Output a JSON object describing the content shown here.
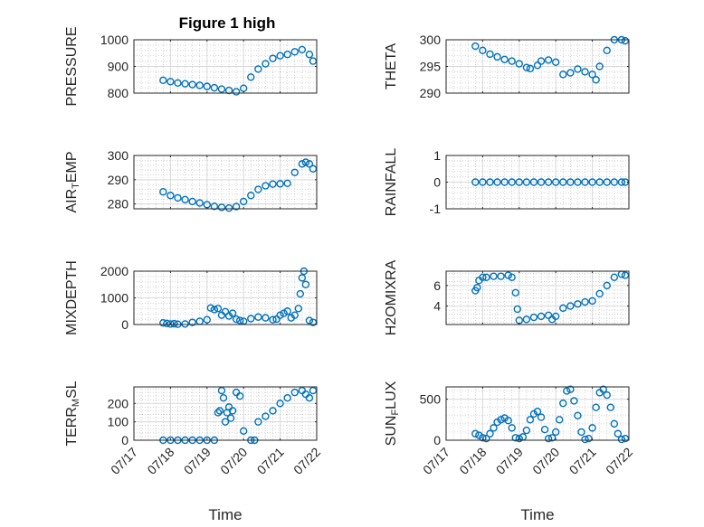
{
  "figure_title": "Figure 1 high",
  "colors": {
    "marker": "#0072BD",
    "axis": "#262626",
    "grid": "#d9d9d9",
    "minor_grid": "#bfbfbf"
  },
  "chart_data": [
    {
      "type": "scatter",
      "ylabel_parts": [
        [
          "PRESSURE",
          ""
        ]
      ],
      "xlabel": "",
      "x_tick_labels": [
        "07/17",
        "07/18",
        "07/19",
        "07/20",
        "07/21",
        "07/22"
      ],
      "x_tick_values": [
        17,
        18,
        19,
        20,
        21,
        22
      ],
      "xlim": [
        17,
        22
      ],
      "y_tick_labels": [
        "800",
        "900",
        "1000"
      ],
      "y_tick_values": [
        800,
        900,
        1000
      ],
      "ylim": [
        800,
        1000
      ],
      "grid": true,
      "x": [
        17.8,
        18.0,
        18.2,
        18.4,
        18.6,
        18.8,
        19.0,
        19.2,
        19.4,
        19.6,
        19.8,
        20.0,
        20.2,
        20.4,
        20.6,
        20.8,
        21.0,
        21.2,
        21.4,
        21.6,
        21.8,
        21.9
      ],
      "y": [
        848,
        843,
        838,
        835,
        832,
        829,
        825,
        820,
        815,
        810,
        805,
        818,
        860,
        890,
        910,
        930,
        940,
        945,
        955,
        963,
        945,
        920
      ]
    },
    {
      "type": "scatter",
      "ylabel_parts": [
        [
          "THETA",
          ""
        ]
      ],
      "xlabel": "",
      "x_tick_labels": [
        "07/17",
        "07/18",
        "07/19",
        "07/20",
        "07/21",
        "07/22"
      ],
      "x_tick_values": [
        17,
        18,
        19,
        20,
        21,
        22
      ],
      "xlim": [
        17,
        22
      ],
      "y_tick_labels": [
        "290",
        "295",
        "300"
      ],
      "y_tick_values": [
        290,
        295,
        300
      ],
      "ylim": [
        290,
        300
      ],
      "grid": true,
      "x": [
        17.8,
        18.0,
        18.2,
        18.4,
        18.6,
        18.8,
        19.0,
        19.2,
        19.3,
        19.5,
        19.6,
        19.8,
        20.0,
        20.2,
        20.4,
        20.6,
        20.8,
        21.0,
        21.1,
        21.2,
        21.4,
        21.6,
        21.8,
        21.9
      ],
      "y": [
        298.8,
        298,
        297.3,
        296.8,
        296.3,
        296,
        295.5,
        294.8,
        294.6,
        295.2,
        296,
        296.2,
        295.8,
        293.5,
        293.8,
        294.5,
        294,
        293.5,
        292.5,
        295,
        298,
        300,
        300,
        299.8
      ]
    },
    {
      "type": "scatter",
      "ylabel_parts": [
        [
          "AIR",
          ""
        ],
        [
          "T",
          "sub"
        ],
        [
          "EMP",
          ""
        ]
      ],
      "xlabel": "",
      "x_tick_labels": [
        "07/17",
        "07/18",
        "07/19",
        "07/20",
        "07/21",
        "07/22"
      ],
      "x_tick_values": [
        17,
        18,
        19,
        20,
        21,
        22
      ],
      "xlim": [
        17,
        22
      ],
      "y_tick_labels": [
        "280",
        "290",
        "300"
      ],
      "y_tick_values": [
        280,
        290,
        300
      ],
      "ylim": [
        278,
        300
      ],
      "grid": true,
      "x": [
        17.8,
        18.0,
        18.2,
        18.4,
        18.6,
        18.8,
        19.0,
        19.2,
        19.4,
        19.6,
        19.8,
        20.0,
        20.2,
        20.4,
        20.6,
        20.8,
        21.0,
        21.2,
        21.4,
        21.6,
        21.7,
        21.8,
        21.9
      ],
      "y": [
        285,
        283.5,
        282.5,
        281.8,
        281,
        280.4,
        279.7,
        279,
        278.6,
        278.3,
        278.9,
        281,
        283.5,
        286,
        287.5,
        288.2,
        288.3,
        288.5,
        293,
        296.5,
        297.2,
        296.5,
        294.5
      ]
    },
    {
      "type": "scatter",
      "ylabel_parts": [
        [
          "RAINFALL",
          ""
        ]
      ],
      "xlabel": "",
      "x_tick_labels": [
        "07/17",
        "07/18",
        "07/19",
        "07/20",
        "07/21",
        "07/22"
      ],
      "x_tick_values": [
        17,
        18,
        19,
        20,
        21,
        22
      ],
      "xlim": [
        17,
        22
      ],
      "y_tick_labels": [
        "-1",
        "0",
        "1"
      ],
      "y_tick_values": [
        -1,
        0,
        1
      ],
      "ylim": [
        -1,
        1
      ],
      "grid": true,
      "x": [
        17.8,
        18.0,
        18.2,
        18.4,
        18.6,
        18.8,
        19.0,
        19.2,
        19.4,
        19.6,
        19.8,
        20.0,
        20.2,
        20.4,
        20.6,
        20.8,
        21.0,
        21.2,
        21.4,
        21.6,
        21.8,
        21.9
      ],
      "y": [
        0,
        0,
        0,
        0,
        0,
        0,
        0,
        0,
        0,
        0,
        0,
        0,
        0,
        0,
        0,
        0,
        0,
        0,
        0,
        0,
        0,
        0
      ]
    },
    {
      "type": "scatter",
      "ylabel_parts": [
        [
          "MIXDEPTH",
          ""
        ]
      ],
      "xlabel": "",
      "x_tick_labels": [
        "07/17",
        "07/18",
        "07/19",
        "07/20",
        "07/21",
        "07/22"
      ],
      "x_tick_values": [
        17,
        18,
        19,
        20,
        21,
        22
      ],
      "xlim": [
        17,
        22
      ],
      "y_tick_labels": [
        "0",
        "1000",
        "2000"
      ],
      "y_tick_values": [
        0,
        1000,
        2000
      ],
      "ylim": [
        0,
        2000
      ],
      "grid": true,
      "x": [
        17.8,
        17.9,
        18.0,
        18.1,
        18.2,
        18.4,
        18.6,
        18.8,
        19.0,
        19.1,
        19.2,
        19.3,
        19.4,
        19.5,
        19.6,
        19.7,
        19.8,
        19.9,
        20.0,
        20.2,
        20.4,
        20.6,
        20.8,
        20.9,
        21.0,
        21.1,
        21.2,
        21.3,
        21.4,
        21.5,
        21.55,
        21.6,
        21.65,
        21.7,
        21.8,
        21.9
      ],
      "y": [
        60,
        40,
        20,
        30,
        10,
        20,
        80,
        120,
        180,
        620,
        560,
        600,
        350,
        480,
        320,
        420,
        200,
        150,
        120,
        220,
        280,
        250,
        180,
        200,
        350,
        420,
        500,
        250,
        350,
        600,
        1150,
        1750,
        2000,
        1500,
        150,
        80
      ]
    },
    {
      "type": "scatter",
      "ylabel_parts": [
        [
          "H2OMIXRA",
          ""
        ]
      ],
      "xlabel": "",
      "x_tick_labels": [
        "07/17",
        "07/18",
        "07/19",
        "07/20",
        "07/21",
        "07/22"
      ],
      "x_tick_values": [
        17,
        18,
        19,
        20,
        21,
        22
      ],
      "xlim": [
        17,
        22
      ],
      "y_tick_labels": [
        "4",
        "6"
      ],
      "y_tick_values": [
        4,
        6
      ],
      "ylim": [
        2.2,
        7.4
      ],
      "grid": true,
      "x": [
        17.8,
        17.85,
        17.9,
        18.0,
        18.1,
        18.3,
        18.5,
        18.7,
        18.8,
        18.9,
        18.95,
        19.0,
        19.2,
        19.4,
        19.6,
        19.8,
        19.9,
        20.0,
        20.2,
        20.4,
        20.6,
        20.8,
        21.0,
        21.2,
        21.4,
        21.6,
        21.8,
        21.9
      ],
      "y": [
        5.5,
        5.8,
        6.5,
        6.8,
        6.8,
        6.9,
        6.9,
        7.0,
        6.8,
        5.3,
        3.7,
        2.6,
        2.7,
        2.9,
        3.0,
        3.1,
        2.7,
        3.0,
        3.8,
        4.0,
        4.2,
        4.4,
        4.5,
        5.2,
        6.0,
        6.8,
        7.1,
        7.0
      ]
    },
    {
      "type": "scatter",
      "ylabel_parts": [
        [
          "TERR",
          ""
        ],
        [
          "M",
          "sub"
        ],
        [
          "SL",
          ""
        ]
      ],
      "xlabel": "Time",
      "x_tick_labels": [
        "07/17",
        "07/18",
        "07/19",
        "07/20",
        "07/21",
        "07/22"
      ],
      "x_tick_values": [
        17,
        18,
        19,
        20,
        21,
        22
      ],
      "xlim": [
        17,
        22
      ],
      "y_tick_labels": [
        "0",
        "100",
        "200"
      ],
      "y_tick_values": [
        0,
        100,
        200
      ],
      "ylim": [
        0,
        290
      ],
      "grid": true,
      "x": [
        17.8,
        18.0,
        18.2,
        18.4,
        18.6,
        18.8,
        19.0,
        19.2,
        19.3,
        19.35,
        19.4,
        19.45,
        19.5,
        19.55,
        19.6,
        19.65,
        19.7,
        19.8,
        19.9,
        20.0,
        20.2,
        20.3,
        20.4,
        20.6,
        20.8,
        21.0,
        21.2,
        21.4,
        21.6,
        21.7,
        21.8,
        21.9
      ],
      "y": [
        0,
        0,
        0,
        0,
        0,
        0,
        0,
        0,
        150,
        160,
        270,
        230,
        100,
        150,
        180,
        120,
        160,
        260,
        240,
        50,
        0,
        0,
        100,
        130,
        160,
        200,
        230,
        260,
        270,
        250,
        230,
        270
      ]
    },
    {
      "type": "scatter",
      "ylabel_parts": [
        [
          "SUN",
          ""
        ],
        [
          "F",
          "sub"
        ],
        [
          "LUX",
          ""
        ]
      ],
      "xlabel": "Time",
      "x_tick_labels": [
        "07/17",
        "07/18",
        "07/19",
        "07/20",
        "07/21",
        "07/22"
      ],
      "x_tick_values": [
        17,
        18,
        19,
        20,
        21,
        22
      ],
      "xlim": [
        17,
        22
      ],
      "y_tick_labels": [
        "0",
        "500"
      ],
      "y_tick_values": [
        0,
        500
      ],
      "ylim": [
        0,
        650
      ],
      "grid": true,
      "x": [
        17.8,
        17.9,
        18.0,
        18.1,
        18.2,
        18.3,
        18.4,
        18.5,
        18.6,
        18.7,
        18.8,
        18.9,
        19.0,
        19.1,
        19.2,
        19.3,
        19.4,
        19.5,
        19.6,
        19.7,
        19.8,
        19.9,
        20.0,
        20.1,
        20.2,
        20.3,
        20.4,
        20.5,
        20.6,
        20.7,
        20.8,
        20.9,
        21.0,
        21.1,
        21.2,
        21.3,
        21.4,
        21.5,
        21.6,
        21.7,
        21.8,
        21.9
      ],
      "y": [
        80,
        60,
        30,
        20,
        80,
        150,
        220,
        250,
        270,
        240,
        150,
        30,
        20,
        40,
        120,
        250,
        320,
        350,
        280,
        130,
        20,
        30,
        100,
        250,
        450,
        600,
        620,
        480,
        300,
        100,
        10,
        20,
        150,
        400,
        580,
        620,
        550,
        400,
        200,
        80,
        10,
        20
      ]
    }
  ]
}
